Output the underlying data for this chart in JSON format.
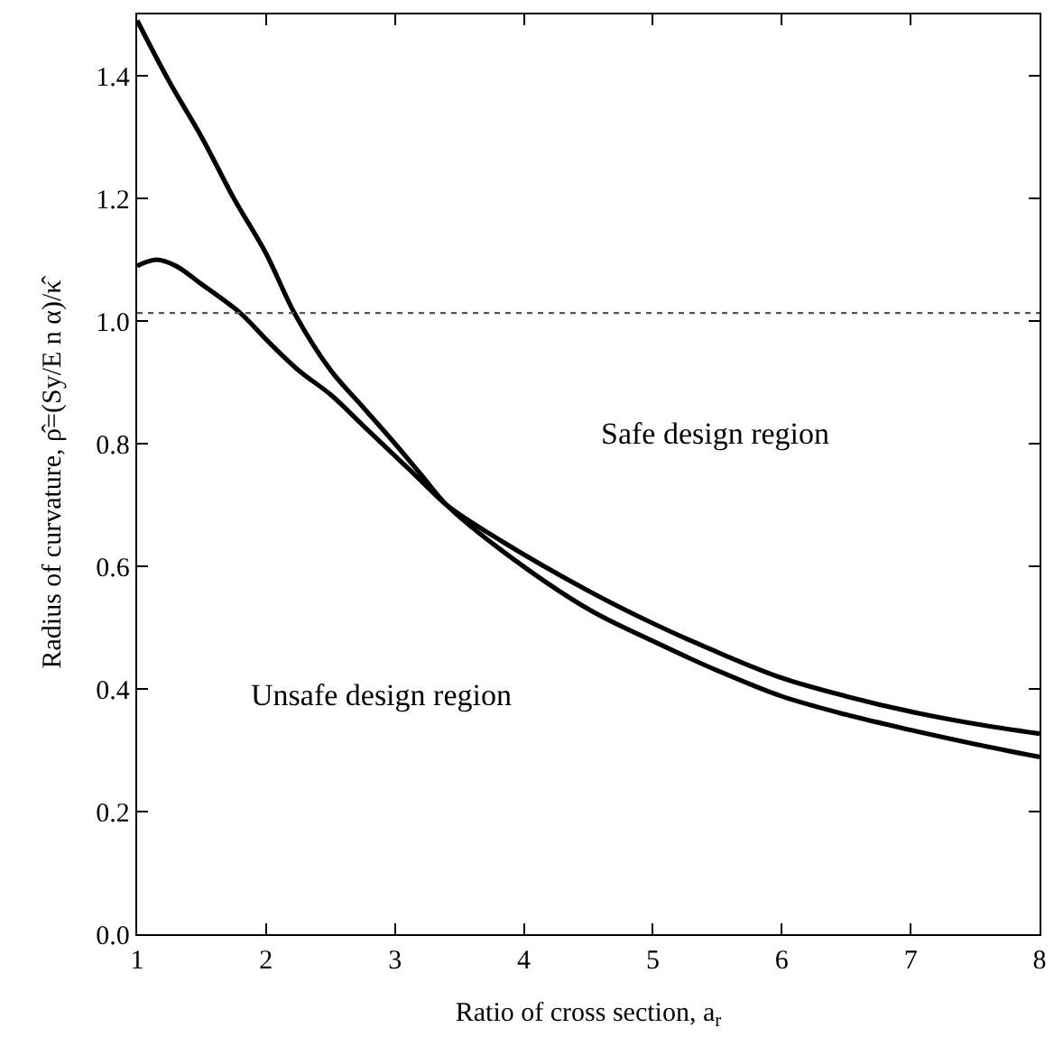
{
  "chart_data": {
    "type": "line",
    "xlabel": "Ratio of cross section, a$_{r}$",
    "ylabel": "Radius of curvature, ρ̂=(Sy/E n α)/κ̂",
    "series": [
      {
        "color": "#000000",
        "x": [
          1,
          1.25,
          1.5,
          1.75,
          2,
          2.22,
          2.5,
          2.75,
          3,
          3.2,
          3.4,
          3.82,
          4.5,
          5,
          5.5,
          6,
          6.5,
          7,
          7.5,
          8
        ],
        "values": [
          1.49,
          1.39,
          1.3,
          1.2,
          1.11,
          1.013,
          0.92,
          0.86,
          0.8,
          0.75,
          0.7,
          0.627,
          0.53,
          0.478,
          0.43,
          0.388,
          0.358,
          0.333,
          0.31,
          0.289
        ]
      },
      {
        "color": "#000000",
        "x": [
          1,
          1.15,
          1.3,
          1.5,
          1.8,
          2,
          2.25,
          2.5,
          2.75,
          3,
          3.2,
          3.4,
          3.82,
          4.5,
          5,
          5.5,
          6,
          6.5,
          7,
          7.5,
          8
        ],
        "values": [
          1.09,
          1.1,
          1.09,
          1.06,
          1.013,
          0.97,
          0.92,
          0.88,
          0.83,
          0.78,
          0.74,
          0.7,
          0.642,
          0.56,
          0.507,
          0.46,
          0.418,
          0.388,
          0.363,
          0.343,
          0.327
        ]
      }
    ],
    "xlim": [
      1,
      8
    ],
    "ylim": [
      0,
      1.5
    ],
    "xticks": [
      1,
      2,
      3,
      4,
      5,
      6,
      7,
      8
    ],
    "yticks": [
      {
        "value": 0,
        "label": "0.0"
      },
      0.2,
      0.4,
      0.6,
      0.8,
      {
        "value": 1,
        "label": "1.0"
      },
      1.2,
      1.4
    ],
    "ref_lines": [
      {
        "axis": "y",
        "value": 1.013,
        "line_style": "dotted",
        "color": "#555555"
      }
    ],
    "annotations": [
      "Safe design region",
      "Unsafe design region"
    ],
    "marker": "none",
    "line_style": "solid"
  }
}
